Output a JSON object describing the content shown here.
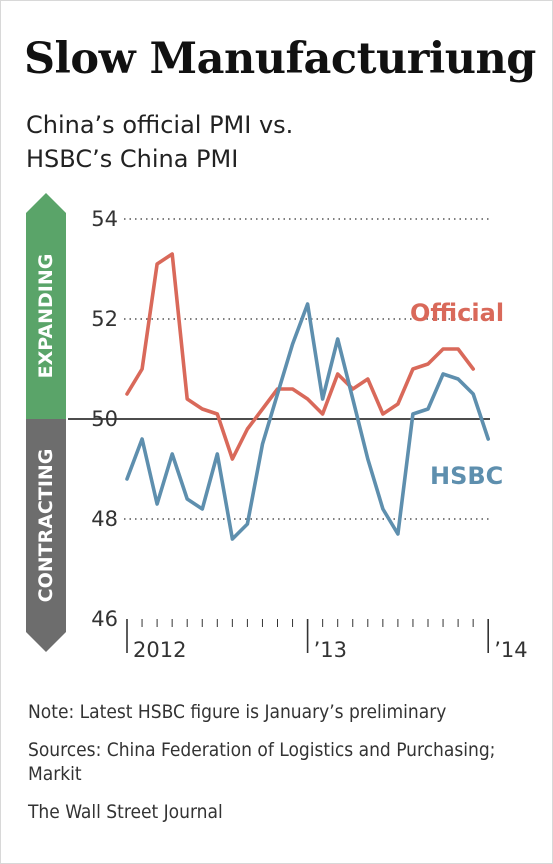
{
  "title": "Slow Manufacturiung",
  "subtitle_lines": [
    "China’s official PMI vs.",
    "HSBC’s China PMI"
  ],
  "zones": {
    "expanding": {
      "label": "EXPANDING",
      "color": "#5aa469"
    },
    "contracting": {
      "label": "CONTRACTING",
      "color": "#6d6d6d"
    }
  },
  "chart_data": {
    "type": "line",
    "y_ticks": [
      "54",
      "52",
      "50",
      "48",
      "46"
    ],
    "x_labels": [
      "2012",
      "’13",
      "’14"
    ],
    "ylim": [
      46,
      54
    ],
    "baseline": 50,
    "series": [
      {
        "name": "Official",
        "color": "#d9695a",
        "values": [
          50.5,
          51.0,
          53.1,
          53.3,
          50.4,
          50.2,
          50.1,
          49.2,
          49.8,
          50.2,
          50.6,
          50.6,
          50.4,
          50.1,
          50.9,
          50.6,
          50.8,
          50.1,
          50.3,
          51.0,
          51.1,
          51.4,
          51.4,
          51.0
        ]
      },
      {
        "name": "HSBC",
        "color": "#5e8fae",
        "values": [
          48.8,
          49.6,
          48.3,
          49.3,
          48.4,
          48.2,
          49.3,
          47.6,
          47.9,
          49.5,
          50.5,
          51.5,
          52.3,
          50.4,
          51.6,
          50.4,
          49.2,
          48.2,
          47.7,
          50.1,
          50.2,
          50.9,
          50.8,
          50.5,
          49.6
        ]
      }
    ]
  },
  "notes": {
    "note": "Note: Latest HSBC figure is January’s preliminary",
    "sources": "Sources: China Federation of Logistics and Purchasing; Markit",
    "credit": "The Wall Street Journal"
  }
}
